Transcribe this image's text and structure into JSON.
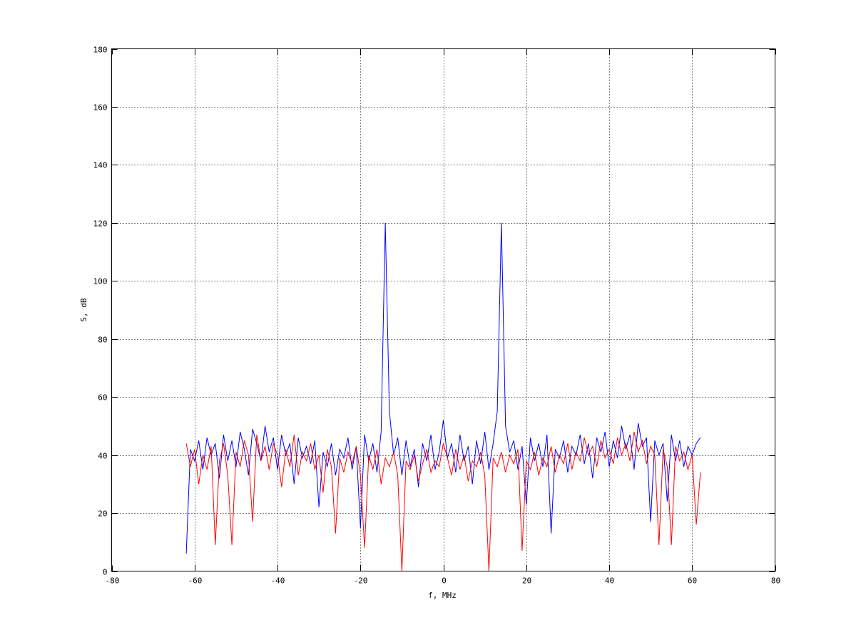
{
  "chart_data": {
    "type": "line",
    "title": "",
    "xlabel": "f, MHz",
    "ylabel": "S, dB",
    "xlim": [
      -80,
      80
    ],
    "ylim": [
      0,
      180
    ],
    "xticks": [
      -80,
      -60,
      -40,
      -20,
      0,
      20,
      40,
      60,
      80
    ],
    "yticks": [
      0,
      20,
      40,
      60,
      80,
      100,
      120,
      140,
      160,
      180
    ],
    "grid": true,
    "grid_style": "dotted",
    "legend": "none",
    "x": [
      -62,
      -61,
      -60,
      -59,
      -58,
      -57,
      -56,
      -55,
      -54,
      -53,
      -52,
      -51,
      -50,
      -49,
      -48,
      -47,
      -46,
      -45,
      -44,
      -43,
      -42,
      -41,
      -40,
      -39,
      -38,
      -37,
      -36,
      -35,
      -34,
      -33,
      -32,
      -31,
      -30,
      -29,
      -28,
      -27,
      -26,
      -25,
      -24,
      -23,
      -22,
      -21,
      -20,
      -19,
      -18,
      -17,
      -16,
      -15,
      -14,
      -13,
      -12,
      -11,
      -10,
      -9,
      -8,
      -7,
      -6,
      -5,
      -4,
      -3,
      -2,
      -1,
      0,
      1,
      2,
      3,
      4,
      5,
      6,
      7,
      8,
      9,
      10,
      11,
      12,
      13,
      14,
      15,
      16,
      17,
      18,
      19,
      20,
      21,
      22,
      23,
      24,
      25,
      26,
      27,
      28,
      29,
      30,
      31,
      32,
      33,
      34,
      35,
      36,
      37,
      38,
      39,
      40,
      41,
      42,
      43,
      44,
      45,
      46,
      47,
      48,
      49,
      50,
      51,
      52,
      53,
      54,
      55,
      56,
      57,
      58,
      59,
      60,
      61,
      62
    ],
    "series": [
      {
        "color": "#0000ff",
        "values": [
          6,
          42,
          38,
          45,
          35,
          46,
          40,
          44,
          32,
          47,
          38,
          45,
          36,
          48,
          42,
          33,
          49,
          44,
          38,
          50,
          41,
          46,
          35,
          47,
          40,
          44,
          30,
          46,
          39,
          43,
          37,
          45,
          22,
          41,
          36,
          44,
          33,
          42,
          39,
          46,
          35,
          43,
          15,
          47,
          38,
          44,
          34,
          48,
          120,
          55,
          40,
          46,
          33,
          45,
          36,
          42,
          29,
          44,
          38,
          47,
          35,
          41,
          52,
          39,
          44,
          34,
          47,
          38,
          43,
          30,
          45,
          37,
          48,
          35,
          44,
          55,
          120,
          50,
          41,
          45,
          35,
          43,
          23,
          46,
          38,
          44,
          36,
          47,
          13,
          42,
          39,
          45,
          34,
          43,
          40,
          47,
          37,
          44,
          32,
          46,
          41,
          48,
          36,
          45,
          39,
          50,
          42,
          47,
          35,
          51,
          43,
          46,
          17,
          45,
          40,
          44,
          24,
          47,
          38,
          45,
          36,
          43,
          40,
          44,
          46
        ]
      },
      {
        "color": "#ff0000",
        "values": [
          44,
          36,
          42,
          30,
          40,
          35,
          43,
          9,
          38,
          44,
          33,
          9,
          41,
          36,
          45,
          40,
          17,
          47,
          38,
          43,
          35,
          44,
          40,
          29,
          42,
          36,
          47,
          33,
          41,
          38,
          44,
          35,
          40,
          27,
          42,
          36,
          13,
          39,
          34,
          41,
          37,
          43,
          33,
          8,
          40,
          35,
          42,
          30,
          39,
          36,
          41,
          33,
          0,
          38,
          35,
          40,
          31,
          37,
          42,
          34,
          38,
          36,
          44,
          39,
          33,
          42,
          35,
          40,
          31,
          38,
          36,
          41,
          33,
          0,
          39,
          36,
          41,
          34,
          40,
          37,
          42,
          7,
          38,
          35,
          41,
          33,
          39,
          36,
          43,
          34,
          40,
          37,
          44,
          35,
          41,
          38,
          46,
          40,
          43,
          36,
          45,
          39,
          42,
          37,
          46,
          40,
          44,
          38,
          48,
          41,
          45,
          37,
          43,
          40,
          9,
          42,
          36,
          9,
          43,
          38,
          41,
          35,
          40,
          16,
          34
        ]
      }
    ]
  }
}
